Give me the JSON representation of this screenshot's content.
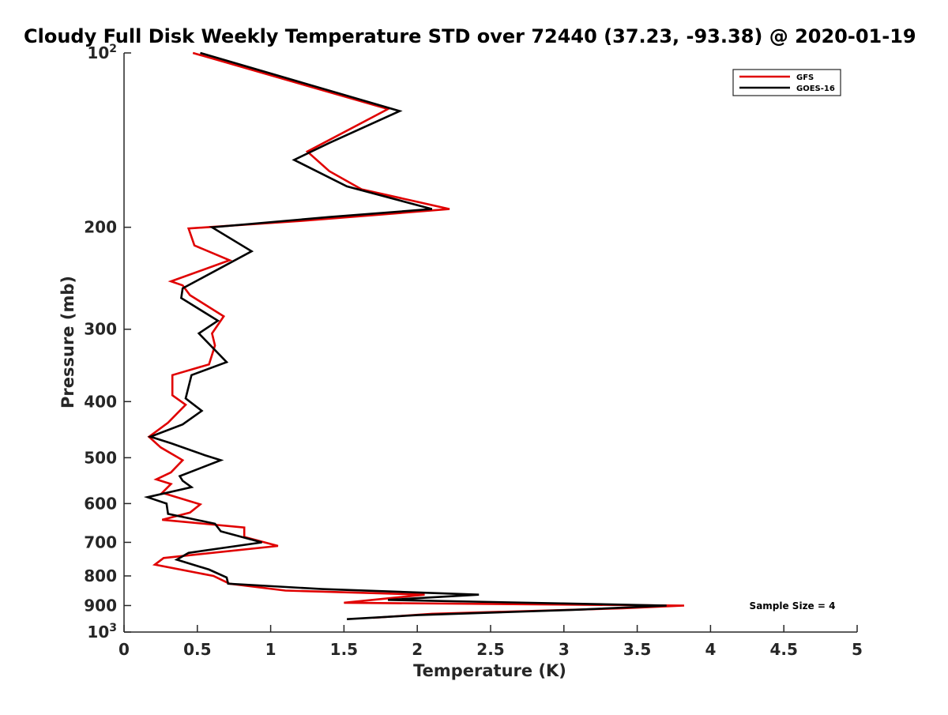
{
  "chart_data": {
    "type": "line",
    "title": "Cloudy Full Disk Weekly Temperature STD over 72440 (37.23, -93.38) @ 2020-01-19",
    "xlabel": "Temperature (K)",
    "ylabel": "Pressure (mb)",
    "xlim": [
      0,
      5
    ],
    "ylim": [
      100,
      1000
    ],
    "y_scale": "log",
    "y_reversed": true,
    "grid": false,
    "legend_position": "top-right",
    "x_ticks": [
      "0",
      "0.5",
      "1",
      "1.5",
      "2",
      "2.5",
      "3",
      "3.5",
      "4",
      "4.5",
      "5"
    ],
    "y_ticks": [
      {
        "value": 100,
        "label": "10",
        "sup": "2"
      },
      {
        "value": 200,
        "label": "200",
        "sup": ""
      },
      {
        "value": 300,
        "label": "300",
        "sup": ""
      },
      {
        "value": 400,
        "label": "400",
        "sup": ""
      },
      {
        "value": 500,
        "label": "500",
        "sup": ""
      },
      {
        "value": 600,
        "label": "600",
        "sup": ""
      },
      {
        "value": 700,
        "label": "700",
        "sup": ""
      },
      {
        "value": 800,
        "label": "800",
        "sup": ""
      },
      {
        "value": 900,
        "label": "900",
        "sup": ""
      },
      {
        "value": 1000,
        "label": "10",
        "sup": "3"
      }
    ],
    "annotation": "Sample Size = 4",
    "colors": {
      "GFS": "#e00000",
      "GOES-16": "#000000"
    },
    "series": [
      {
        "name": "GFS",
        "color": "#e00000",
        "points": [
          [
            0.47,
            100
          ],
          [
            1.8,
            125
          ],
          [
            1.25,
            148
          ],
          [
            1.4,
            160
          ],
          [
            1.62,
            172
          ],
          [
            2.22,
            186
          ],
          [
            1.21,
            195
          ],
          [
            0.44,
            201
          ],
          [
            0.48,
            215
          ],
          [
            0.72,
            228
          ],
          [
            0.32,
            248
          ],
          [
            0.4,
            252
          ],
          [
            0.45,
            262
          ],
          [
            0.68,
            285
          ],
          [
            0.6,
            305
          ],
          [
            0.62,
            320
          ],
          [
            0.58,
            345
          ],
          [
            0.33,
            360
          ],
          [
            0.33,
            390
          ],
          [
            0.42,
            405
          ],
          [
            0.3,
            435
          ],
          [
            0.17,
            460
          ],
          [
            0.25,
            480
          ],
          [
            0.4,
            505
          ],
          [
            0.32,
            530
          ],
          [
            0.22,
            545
          ],
          [
            0.32,
            555
          ],
          [
            0.26,
            575
          ],
          [
            0.52,
            602
          ],
          [
            0.45,
            622
          ],
          [
            0.26,
            640
          ],
          [
            0.82,
            660
          ],
          [
            0.82,
            685
          ],
          [
            1.05,
            710
          ],
          [
            0.27,
            745
          ],
          [
            0.21,
            765
          ],
          [
            0.61,
            800
          ],
          [
            0.72,
            825
          ],
          [
            1.1,
            848
          ],
          [
            2.05,
            862
          ],
          [
            1.5,
            890
          ],
          [
            3.82,
            900
          ],
          [
            3.4,
            910
          ],
          [
            2.1,
            930
          ],
          [
            1.7,
            945
          ]
        ]
      },
      {
        "name": "GOES-16",
        "color": "#000000",
        "points": [
          [
            0.52,
            100
          ],
          [
            1.88,
            126
          ],
          [
            1.4,
            143
          ],
          [
            1.16,
            153
          ],
          [
            1.52,
            170
          ],
          [
            2.1,
            186
          ],
          [
            1.4,
            192
          ],
          [
            0.6,
            200
          ],
          [
            0.87,
            220
          ],
          [
            0.4,
            255
          ],
          [
            0.39,
            265
          ],
          [
            0.64,
            290
          ],
          [
            0.51,
            305
          ],
          [
            0.7,
            342
          ],
          [
            0.46,
            360
          ],
          [
            0.42,
            395
          ],
          [
            0.53,
            415
          ],
          [
            0.4,
            438
          ],
          [
            0.18,
            460
          ],
          [
            0.32,
            472
          ],
          [
            0.55,
            495
          ],
          [
            0.66,
            505
          ],
          [
            0.38,
            538
          ],
          [
            0.4,
            548
          ],
          [
            0.46,
            562
          ],
          [
            0.16,
            585
          ],
          [
            0.29,
            600
          ],
          [
            0.3,
            625
          ],
          [
            0.62,
            650
          ],
          [
            0.66,
            670
          ],
          [
            0.94,
            700
          ],
          [
            0.44,
            730
          ],
          [
            0.36,
            750
          ],
          [
            0.58,
            780
          ],
          [
            0.7,
            805
          ],
          [
            0.71,
            825
          ],
          [
            1.35,
            843
          ],
          [
            2.42,
            862
          ],
          [
            1.8,
            880
          ],
          [
            3.7,
            900
          ],
          [
            3.1,
            915
          ],
          [
            2.0,
            935
          ],
          [
            1.52,
            950
          ]
        ]
      }
    ]
  }
}
